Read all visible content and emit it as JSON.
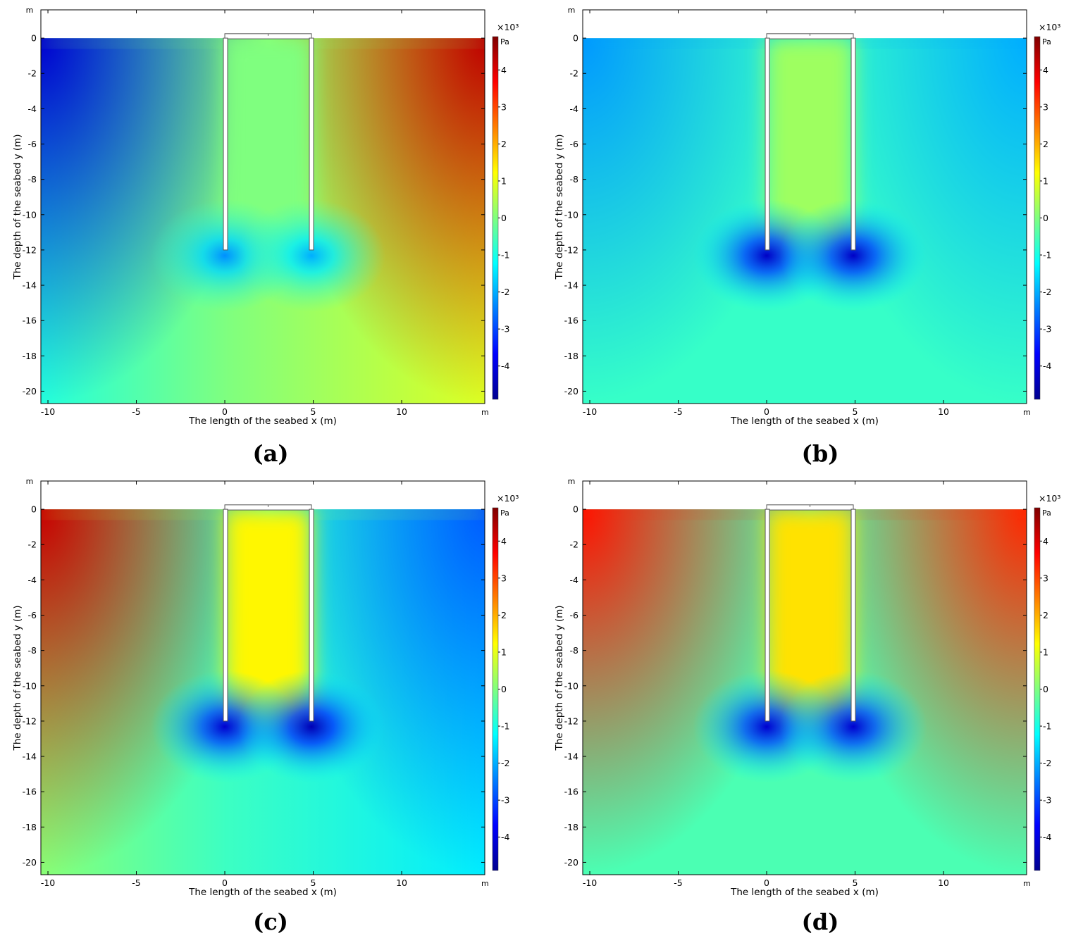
{
  "colorscale": [
    "#00008f",
    "#0000ff",
    "#007fff",
    "#00ffff",
    "#7fff7f",
    "#ffff00",
    "#ff7f00",
    "#ff0000",
    "#7f0000"
  ],
  "chart_data": [
    {
      "type": "heatmap",
      "panel_label": "(a)",
      "xlabel": "The length of the seabed x (m)",
      "ylabel": "The depth of the seabed y (m)",
      "x_unit": "m",
      "y_unit": "m",
      "xlim": [
        -10.4,
        14.7
      ],
      "ylim": [
        -20.7,
        1.6
      ],
      "x_ticks": [
        -10,
        -5,
        0,
        5,
        10
      ],
      "y_ticks": [
        0,
        -2,
        -4,
        -6,
        -8,
        -10,
        -12,
        -14,
        -16,
        -18,
        -20
      ],
      "colorbar": {
        "multiplier": "×10³",
        "unit": "Pa",
        "range": [
          -4.9,
          4.9
        ],
        "ticks": [
          4,
          3,
          2,
          1,
          0,
          -1,
          -2,
          -3,
          -4
        ]
      },
      "structure": {
        "walls_x": [
          0,
          4.9
        ],
        "wall_bottom": -12,
        "lid_top": 0.25,
        "lid_mark_x": 2.45
      },
      "field": {
        "background_left": -0.9,
        "background_right": 0.9,
        "inside": 0.0,
        "surface_left": -4.2,
        "surface_right": 4.3,
        "tip_left": -2.3,
        "tip_right": -2.0
      }
    },
    {
      "type": "heatmap",
      "panel_label": "(b)",
      "xlabel": "The length of the seabed x (m)",
      "ylabel": "The depth of the seabed y (m)",
      "x_unit": "m",
      "y_unit": "m",
      "xlim": [
        -10.4,
        14.7
      ],
      "ylim": [
        -20.7,
        1.6
      ],
      "x_ticks": [
        -10,
        -5,
        0,
        5,
        10
      ],
      "y_ticks": [
        0,
        -2,
        -4,
        -6,
        -8,
        -10,
        -12,
        -14,
        -16,
        -18,
        -20
      ],
      "colorbar": {
        "multiplier": "×10³",
        "unit": "Pa",
        "range": [
          -4.9,
          4.9
        ],
        "ticks": [
          4,
          3,
          2,
          1,
          0,
          -1,
          -2,
          -3,
          -4
        ]
      },
      "structure": {
        "walls_x": [
          0,
          4.9
        ],
        "wall_bottom": -12,
        "lid_top": 0.25,
        "lid_mark_x": 2.45
      },
      "field": {
        "background_left": -0.7,
        "background_right": -0.7,
        "inside": 0.3,
        "surface_left": -2.2,
        "surface_right": -2.0,
        "tip_left": -4.3,
        "tip_right": -4.3
      }
    },
    {
      "type": "heatmap",
      "panel_label": "(c)",
      "xlabel": "The length of the seabed x (m)",
      "ylabel": "The depth of the seabed y (m)",
      "x_unit": "m",
      "y_unit": "m",
      "xlim": [
        -10.4,
        14.7
      ],
      "ylim": [
        -20.7,
        1.6
      ],
      "x_ticks": [
        -10,
        -5,
        0,
        5,
        10
      ],
      "y_ticks": [
        0,
        -2,
        -4,
        -6,
        -8,
        -10,
        -12,
        -14,
        -16,
        -18,
        -20
      ],
      "colorbar": {
        "multiplier": "×10³",
        "unit": "Pa",
        "range": [
          -4.9,
          4.9
        ],
        "ticks": [
          4,
          3,
          2,
          1,
          0,
          -1,
          -2,
          -3,
          -4
        ]
      },
      "structure": {
        "walls_x": [
          0,
          4.9
        ],
        "wall_bottom": -12,
        "lid_top": 0.25,
        "lid_mark_x": 2.45
      },
      "field": {
        "background_left": 0.1,
        "background_right": -1.4,
        "inside": 1.3,
        "surface_left": 4.2,
        "surface_right": -2.8,
        "tip_left": -4.2,
        "tip_right": -4.5
      }
    },
    {
      "type": "heatmap",
      "panel_label": "(d)",
      "xlabel": "The length of the seabed x (m)",
      "ylabel": "The depth of the seabed y (m)",
      "x_unit": "m",
      "y_unit": "m",
      "xlim": [
        -10.4,
        14.7
      ],
      "ylim": [
        -20.7,
        1.6
      ],
      "x_ticks": [
        -10,
        -5,
        0,
        5,
        10
      ],
      "y_ticks": [
        0,
        -2,
        -4,
        -6,
        -8,
        -10,
        -12,
        -14,
        -16,
        -18,
        -20
      ],
      "colorbar": {
        "multiplier": "×10³",
        "unit": "Pa",
        "range": [
          -4.9,
          4.9
        ],
        "ticks": [
          4,
          3,
          2,
          1,
          0,
          -1,
          -2,
          -3,
          -4
        ]
      },
      "structure": {
        "walls_x": [
          0,
          4.9
        ],
        "wall_bottom": -12,
        "lid_top": 0.25,
        "lid_mark_x": 2.45
      },
      "field": {
        "background_left": -0.5,
        "background_right": -0.5,
        "inside": 1.5,
        "surface_left": 3.5,
        "surface_right": 3.3,
        "tip_left": -4.2,
        "tip_right": -4.2
      }
    }
  ]
}
